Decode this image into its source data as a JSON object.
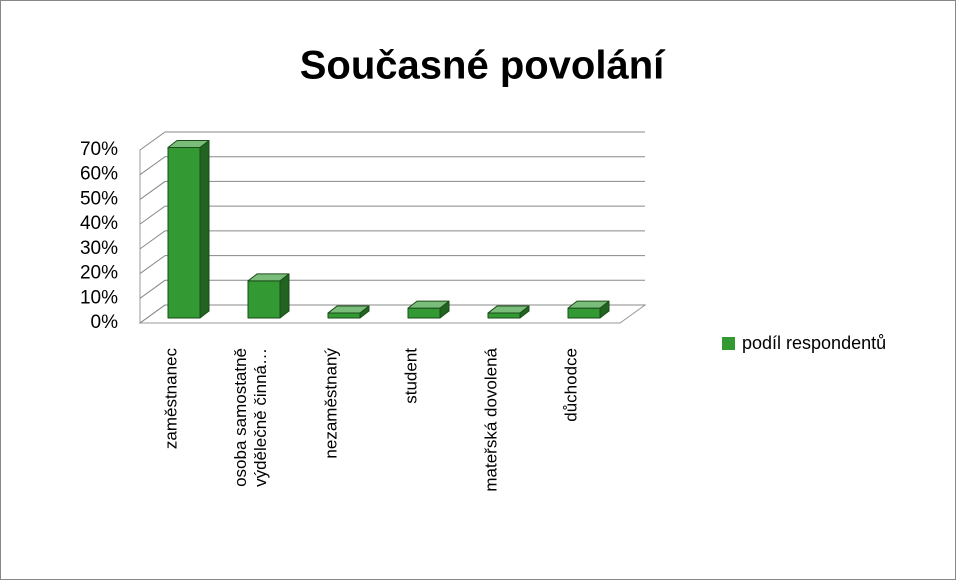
{
  "chart_data": {
    "type": "bar3d",
    "title": "Současné povolání",
    "categories": [
      "zaměstnanec",
      "osoba samostatně\nvýdělečně činná…",
      "nezaměstnaný",
      "student",
      "mateřská dovolená",
      "důchodce"
    ],
    "series": [
      {
        "name": "podíl respondentů",
        "color": "#339933",
        "values": [
          69,
          15,
          2,
          4,
          2,
          4
        ]
      }
    ],
    "ylim": [
      0,
      70
    ],
    "yticks": [
      {
        "value": 0,
        "label": "0%"
      },
      {
        "value": 10,
        "label": "10%"
      },
      {
        "value": 20,
        "label": "20%"
      },
      {
        "value": 30,
        "label": "30%"
      },
      {
        "value": 40,
        "label": "40%"
      },
      {
        "value": 50,
        "label": "50%"
      },
      {
        "value": 60,
        "label": "60%"
      },
      {
        "value": 70,
        "label": "70%"
      }
    ],
    "grid": true,
    "legend": "right"
  }
}
